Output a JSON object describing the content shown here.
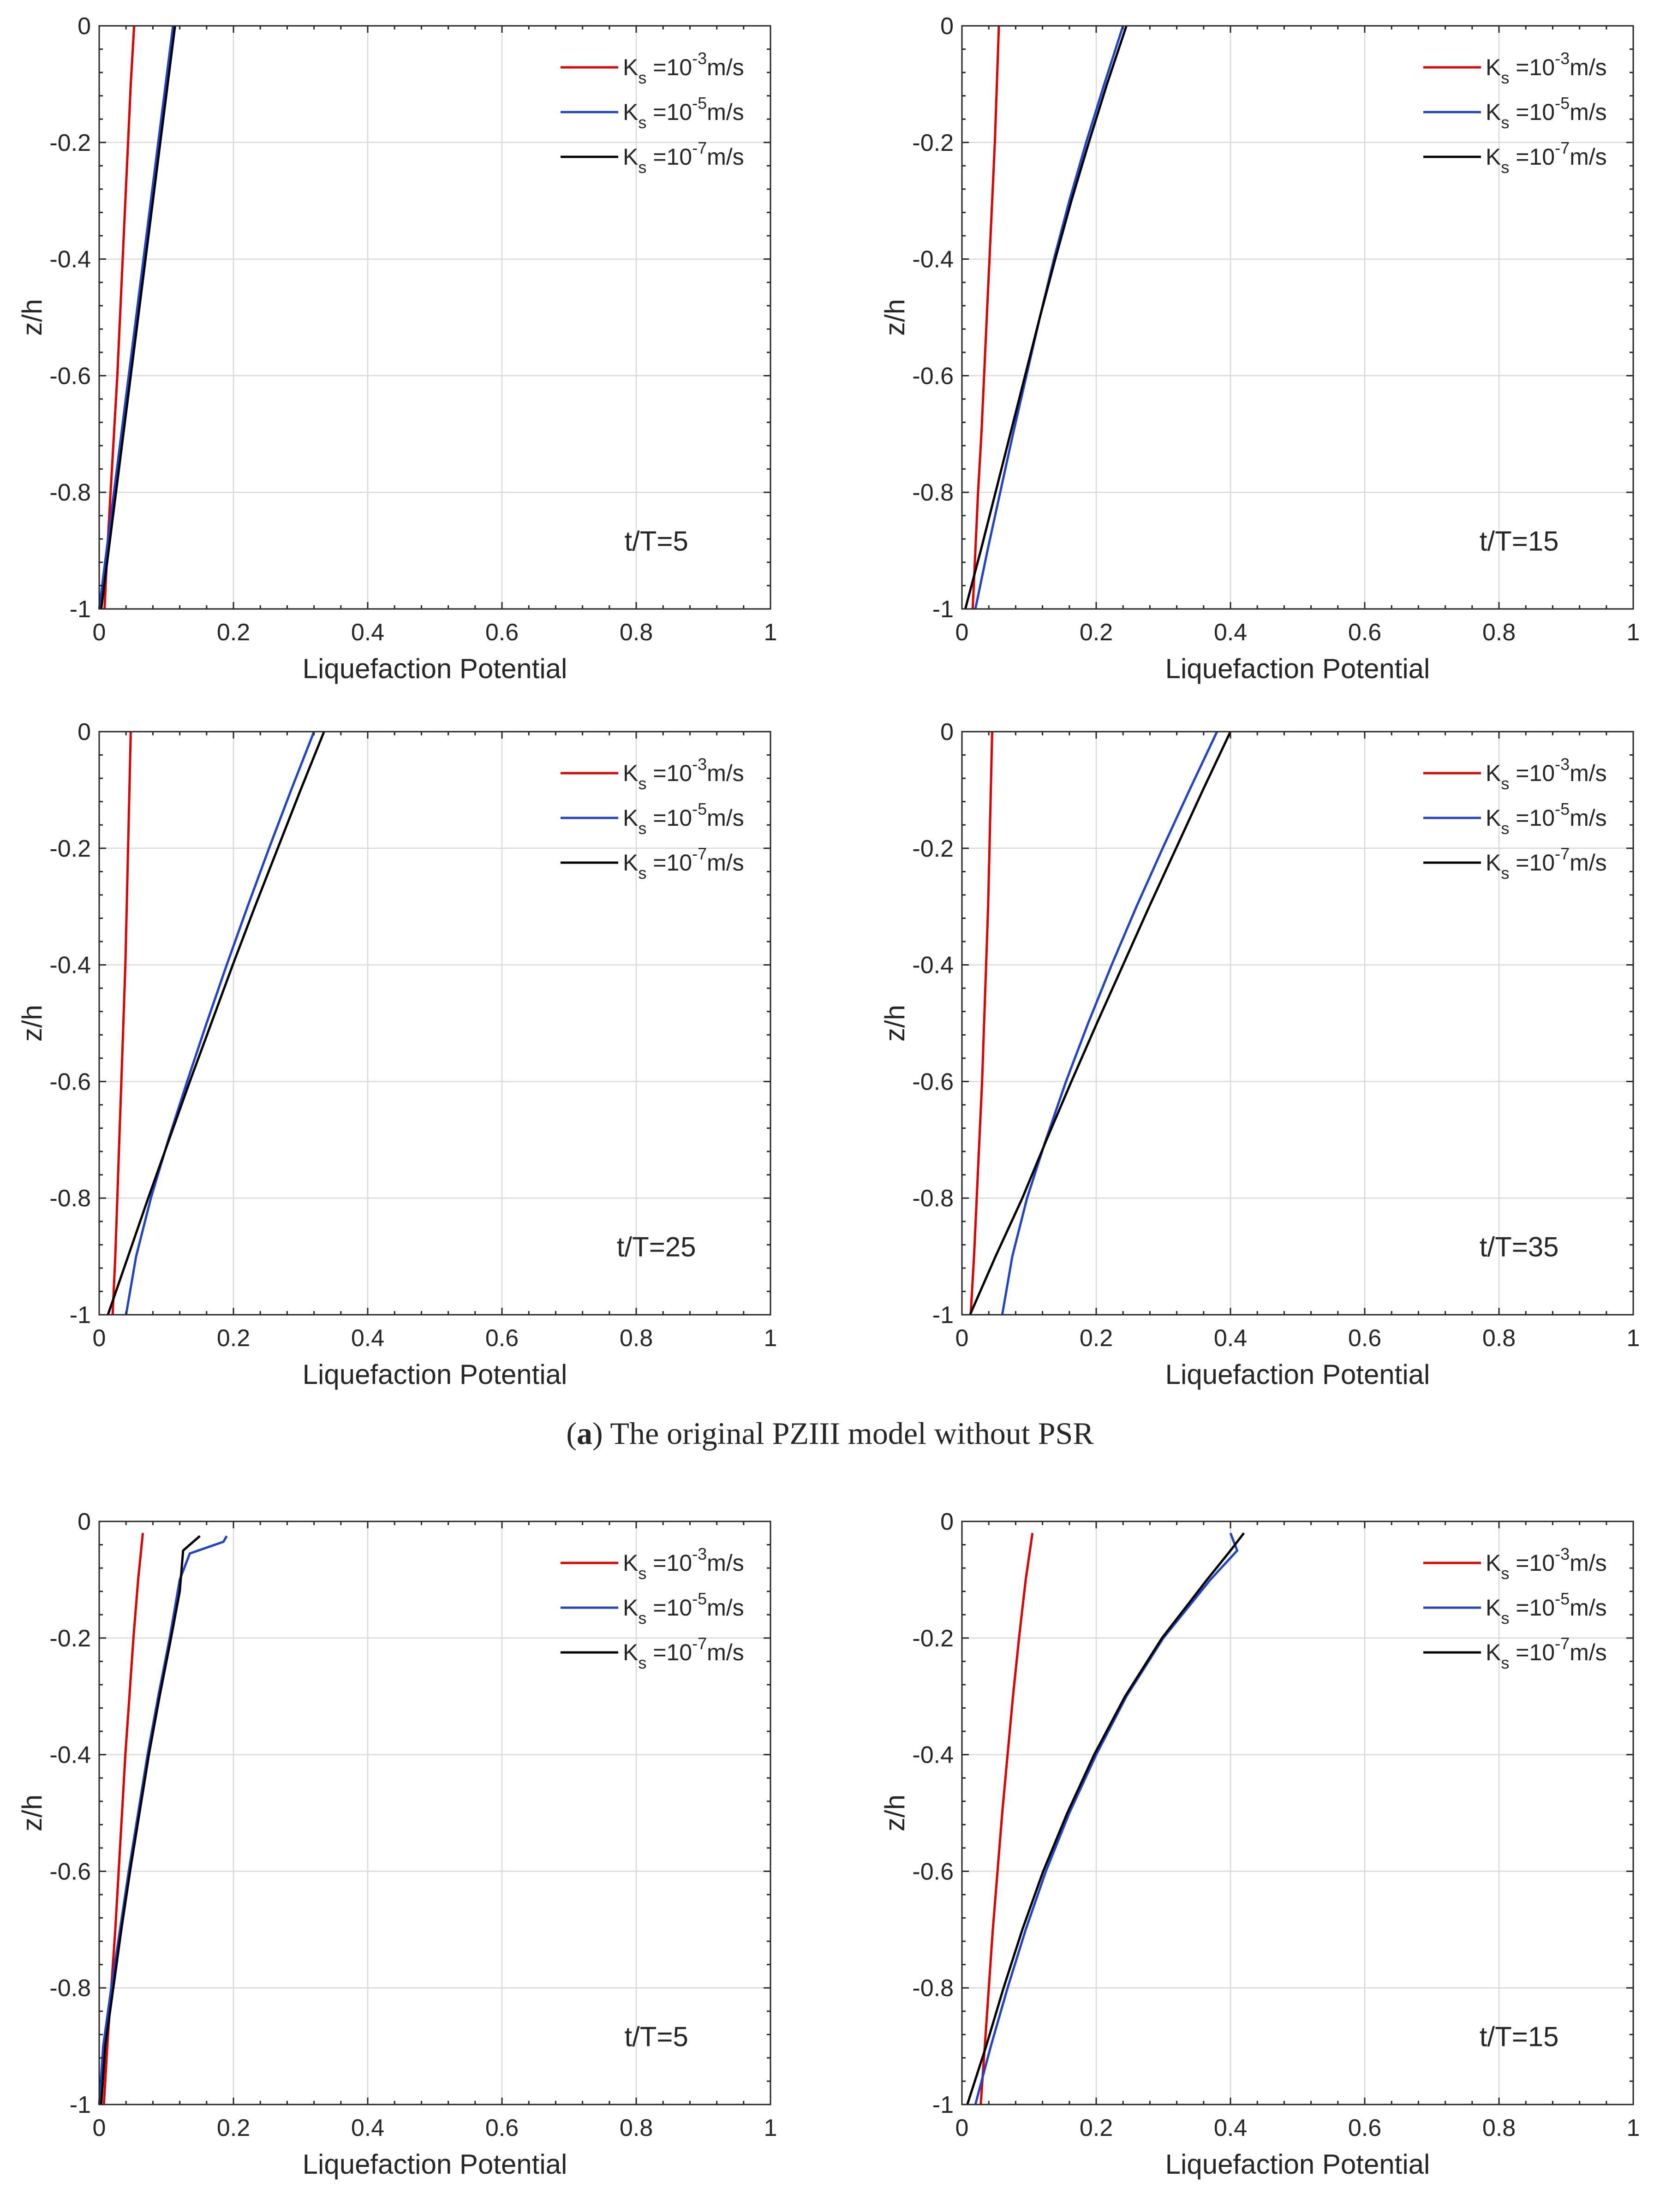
{
  "caption_a": {
    "label": "a",
    "open_paren": "(",
    "close_paren": ")",
    "text": " The original PZIII model without PSR"
  },
  "colors": {
    "series": [
      "#e00000",
      "#1f44c8",
      "#000000"
    ],
    "grid": "#d9d9d9",
    "axis": "#262626",
    "text": "#262626"
  },
  "legend": {
    "base": "K",
    "sub": "s",
    "eq": " =10",
    "unit": "m/s",
    "exponents": [
      "-3",
      "-5",
      "-7"
    ]
  },
  "chart_data": [
    {
      "type": "line",
      "title": "",
      "annotation": "t/T=5",
      "xlabel": "Liquefaction Potential",
      "ylabel": "z/h",
      "xlim": [
        0,
        1
      ],
      "ylim": [
        -1,
        0
      ],
      "xticks": [
        "0",
        "0.2",
        "0.4",
        "0.6",
        "0.8",
        "1"
      ],
      "yticks": [
        "0",
        "-0.2",
        "-0.4",
        "-0.6",
        "-0.8",
        "-1"
      ],
      "legend_position": "top-right",
      "series": [
        {
          "name": "Ks =10^-3 m/s",
          "z": [
            0,
            -0.1,
            -0.2,
            -0.3,
            -0.4,
            -0.5,
            -0.6,
            -0.7,
            -0.8,
            -0.9,
            -1.0
          ],
          "x": [
            0.052,
            0.047,
            0.043,
            0.039,
            0.035,
            0.031,
            0.027,
            0.022,
            0.017,
            0.012,
            0.008
          ]
        },
        {
          "name": "Ks =10^-5 m/s",
          "z": [
            0,
            -0.1,
            -0.2,
            -0.3,
            -0.4,
            -0.5,
            -0.6,
            -0.7,
            -0.8,
            -0.9,
            -1.0
          ],
          "x": [
            0.11,
            0.099,
            0.088,
            0.077,
            0.066,
            0.055,
            0.044,
            0.033,
            0.022,
            0.011,
            0.0
          ]
        },
        {
          "name": "Ks =10^-7 m/s",
          "z": [
            0,
            -0.1,
            -0.2,
            -0.3,
            -0.4,
            -0.5,
            -0.6,
            -0.7,
            -0.8,
            -0.9,
            -1.0
          ],
          "x": [
            0.113,
            0.102,
            0.091,
            0.08,
            0.069,
            0.058,
            0.047,
            0.036,
            0.025,
            0.014,
            0.003
          ]
        }
      ]
    },
    {
      "type": "line",
      "title": "",
      "annotation": "t/T=15",
      "xlabel": "Liquefaction Potential",
      "ylabel": "z/h",
      "xlim": [
        0,
        1
      ],
      "ylim": [
        -1,
        0
      ],
      "xticks": [
        "0",
        "0.2",
        "0.4",
        "0.6",
        "0.8",
        "1"
      ],
      "yticks": [
        "0",
        "-0.2",
        "-0.4",
        "-0.6",
        "-0.8",
        "-1"
      ],
      "legend_position": "top-right",
      "series": [
        {
          "name": "Ks =10^-3 m/s",
          "z": [
            0,
            -0.1,
            -0.2,
            -0.3,
            -0.4,
            -0.5,
            -0.6,
            -0.7,
            -0.8,
            -0.9,
            -1.0
          ],
          "x": [
            0.055,
            0.052,
            0.049,
            0.045,
            0.041,
            0.037,
            0.033,
            0.029,
            0.024,
            0.02,
            0.016
          ]
        },
        {
          "name": "Ks =10^-5 m/s",
          "z": [
            0,
            -0.1,
            -0.2,
            -0.3,
            -0.4,
            -0.5,
            -0.6,
            -0.7,
            -0.8,
            -0.9,
            -1.0
          ],
          "x": [
            0.24,
            0.212,
            0.185,
            0.16,
            0.137,
            0.116,
            0.096,
            0.076,
            0.057,
            0.038,
            0.02
          ]
        },
        {
          "name": "Ks =10^-7 m/s",
          "z": [
            0,
            -0.1,
            -0.2,
            -0.3,
            -0.4,
            -0.5,
            -0.6,
            -0.7,
            -0.8,
            -0.9,
            -1.0
          ],
          "x": [
            0.245,
            0.216,
            0.189,
            0.163,
            0.139,
            0.116,
            0.094,
            0.072,
            0.05,
            0.028,
            0.005
          ]
        }
      ]
    },
    {
      "type": "line",
      "title": "",
      "annotation": "t/T=25",
      "xlabel": "Liquefaction Potential",
      "ylabel": "z/h",
      "xlim": [
        0,
        1
      ],
      "ylim": [
        -1,
        0
      ],
      "xticks": [
        "0",
        "0.2",
        "0.4",
        "0.6",
        "0.8",
        "1"
      ],
      "yticks": [
        "0",
        "-0.2",
        "-0.4",
        "-0.6",
        "-0.8",
        "-1"
      ],
      "legend_position": "top-right",
      "series": [
        {
          "name": "Ks =10^-3 m/s",
          "z": [
            0,
            -0.1,
            -0.2,
            -0.3,
            -0.4,
            -0.5,
            -0.6,
            -0.7,
            -0.8,
            -0.9,
            -1.0
          ],
          "x": [
            0.047,
            0.045,
            0.043,
            0.041,
            0.039,
            0.036,
            0.033,
            0.03,
            0.027,
            0.024,
            0.02
          ]
        },
        {
          "name": "Ks =10^-5 m/s",
          "z": [
            0,
            -0.1,
            -0.2,
            -0.3,
            -0.4,
            -0.5,
            -0.6,
            -0.7,
            -0.8,
            -0.9,
            -1.0
          ],
          "x": [
            0.32,
            0.286,
            0.253,
            0.221,
            0.19,
            0.16,
            0.131,
            0.103,
            0.077,
            0.055,
            0.04
          ]
        },
        {
          "name": "Ks =10^-7 m/s",
          "z": [
            0,
            -0.1,
            -0.2,
            -0.3,
            -0.4,
            -0.5,
            -0.6,
            -0.7,
            -0.8,
            -0.9,
            -1.0
          ],
          "x": [
            0.335,
            0.3,
            0.266,
            0.232,
            0.199,
            0.167,
            0.135,
            0.104,
            0.073,
            0.043,
            0.013
          ]
        }
      ]
    },
    {
      "type": "line",
      "title": "",
      "annotation": "t/T=35",
      "xlabel": "Liquefaction Potential",
      "ylabel": "z/h",
      "xlim": [
        0,
        1
      ],
      "ylim": [
        -1,
        0
      ],
      "xticks": [
        "0",
        "0.2",
        "0.4",
        "0.6",
        "0.8",
        "1"
      ],
      "yticks": [
        "0",
        "-0.2",
        "-0.4",
        "-0.6",
        "-0.8",
        "-1"
      ],
      "legend_position": "top-right",
      "series": [
        {
          "name": "Ks =10^-3 m/s",
          "z": [
            0,
            -0.1,
            -0.2,
            -0.3,
            -0.4,
            -0.5,
            -0.6,
            -0.7,
            -0.8,
            -0.9,
            -1.0
          ],
          "x": [
            0.045,
            0.043,
            0.041,
            0.039,
            0.036,
            0.033,
            0.03,
            0.026,
            0.022,
            0.018,
            0.013
          ]
        },
        {
          "name": "Ks =10^-5 m/s",
          "z": [
            0,
            -0.1,
            -0.2,
            -0.3,
            -0.4,
            -0.5,
            -0.6,
            -0.7,
            -0.8,
            -0.9,
            -1.0
          ],
          "x": [
            0.38,
            0.339,
            0.299,
            0.26,
            0.223,
            0.188,
            0.155,
            0.125,
            0.097,
            0.075,
            0.06
          ]
        },
        {
          "name": "Ks =10^-7 m/s",
          "z": [
            0,
            -0.1,
            -0.2,
            -0.3,
            -0.4,
            -0.5,
            -0.6,
            -0.7,
            -0.8,
            -0.9,
            -1.0
          ],
          "x": [
            0.4,
            0.359,
            0.319,
            0.279,
            0.24,
            0.201,
            0.163,
            0.126,
            0.09,
            0.05,
            0.012
          ]
        }
      ]
    },
    {
      "type": "line",
      "title": "",
      "annotation": "t/T=5",
      "xlabel": "Liquefaction Potential",
      "ylabel": "z/h",
      "xlim": [
        0,
        1
      ],
      "ylim": [
        -1,
        0
      ],
      "xticks": [
        "0",
        "0.2",
        "0.4",
        "0.6",
        "0.8",
        "1"
      ],
      "yticks": [
        "0",
        "-0.2",
        "-0.4",
        "-0.6",
        "-0.8",
        "-1"
      ],
      "legend_position": "top-right",
      "series": [
        {
          "name": "Ks =10^-3 m/s",
          "z": [
            -0.02,
            -0.1,
            -0.2,
            -0.3,
            -0.4,
            -0.5,
            -0.6,
            -0.7,
            -0.8,
            -0.9,
            -1.0
          ],
          "x": [
            0.065,
            0.058,
            0.051,
            0.045,
            0.039,
            0.034,
            0.029,
            0.024,
            0.018,
            0.012,
            0.007
          ]
        },
        {
          "name": "Ks =10^-5 m/s",
          "z": [
            -0.025,
            -0.035,
            -0.055,
            -0.1,
            -0.2,
            -0.3,
            -0.4,
            -0.5,
            -0.6,
            -0.7,
            -0.8,
            -0.9,
            -1.0
          ],
          "x": [
            0.19,
            0.185,
            0.135,
            0.12,
            0.105,
            0.088,
            0.072,
            0.058,
            0.044,
            0.031,
            0.018,
            0.006,
            0.0
          ]
        },
        {
          "name": "Ks =10^-7 m/s",
          "z": [
            -0.025,
            -0.05,
            -0.12,
            -0.2,
            -0.3,
            -0.4,
            -0.5,
            -0.6,
            -0.7,
            -0.8,
            -0.9,
            -1.0
          ],
          "x": [
            0.15,
            0.125,
            0.12,
            0.107,
            0.09,
            0.074,
            0.06,
            0.046,
            0.033,
            0.021,
            0.009,
            0.003
          ]
        }
      ]
    },
    {
      "type": "line",
      "title": "",
      "annotation": "t/T=15",
      "xlabel": "Liquefaction Potential",
      "ylabel": "z/h",
      "xlim": [
        0,
        1
      ],
      "ylim": [
        -1,
        0
      ],
      "xticks": [
        "0",
        "0.2",
        "0.4",
        "0.6",
        "0.8",
        "1"
      ],
      "yticks": [
        "0",
        "-0.2",
        "-0.4",
        "-0.6",
        "-0.8",
        "-1"
      ],
      "legend_position": "top-right",
      "series": [
        {
          "name": "Ks =10^-3 m/s",
          "z": [
            -0.02,
            -0.1,
            -0.2,
            -0.3,
            -0.4,
            -0.5,
            -0.6,
            -0.7,
            -0.8,
            -0.9,
            -1.0
          ],
          "x": [
            0.105,
            0.095,
            0.085,
            0.076,
            0.068,
            0.06,
            0.053,
            0.046,
            0.04,
            0.034,
            0.028
          ]
        },
        {
          "name": "Ks =10^-5 m/s",
          "z": [
            -0.02,
            -0.05,
            -0.1,
            -0.2,
            -0.3,
            -0.4,
            -0.5,
            -0.6,
            -0.7,
            -0.8,
            -0.9,
            -1.0
          ],
          "x": [
            0.4,
            0.41,
            0.37,
            0.3,
            0.245,
            0.2,
            0.16,
            0.125,
            0.095,
            0.068,
            0.043,
            0.02
          ]
        },
        {
          "name": "Ks =10^-7 m/s",
          "z": [
            -0.02,
            -0.05,
            -0.1,
            -0.2,
            -0.3,
            -0.4,
            -0.5,
            -0.6,
            -0.7,
            -0.8,
            -0.9,
            -1.0
          ],
          "x": [
            0.42,
            0.4,
            0.365,
            0.298,
            0.243,
            0.197,
            0.157,
            0.121,
            0.09,
            0.062,
            0.036,
            0.008
          ]
        }
      ]
    }
  ]
}
